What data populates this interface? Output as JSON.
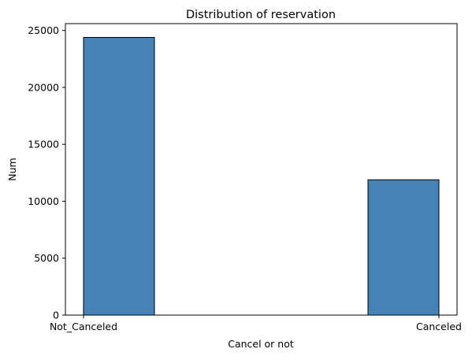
{
  "chart_data": {
    "type": "bar",
    "title": "Distribution of reservation",
    "xlabel": "Cancel or not",
    "ylabel": "Num",
    "categories": [
      "Not_Canceled",
      "Canceled"
    ],
    "values": [
      24390,
      11885
    ],
    "ylim": [
      0,
      25600
    ],
    "yticks": [
      0,
      5000,
      10000,
      15000,
      20000,
      25000
    ],
    "grid": false,
    "legend": "none",
    "bar_color": "#4682b4",
    "edge_color": "#000000"
  }
}
